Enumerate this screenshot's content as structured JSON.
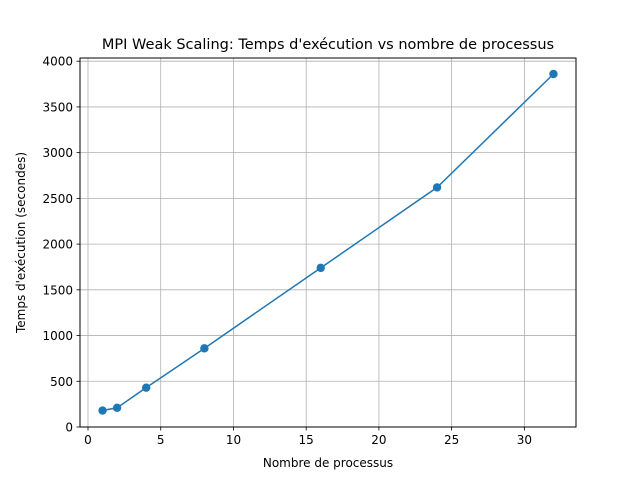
{
  "chart_data": {
    "type": "line",
    "title": "MPI Weak Scaling: Temps d'exécution vs nombre de processus",
    "xlabel": "Nombre de processus",
    "ylabel": "Temps d'exécution (secondes)",
    "xlim": [
      -0.55,
      33.55
    ],
    "ylim": [
      0,
      4035
    ],
    "grid": true,
    "xticks": [
      0,
      5,
      10,
      15,
      20,
      25,
      30
    ],
    "yticks": [
      0,
      500,
      1000,
      1500,
      2000,
      2500,
      3000,
      3500,
      4000
    ],
    "series": [
      {
        "color": "#1f77b4",
        "marker": "circle",
        "x": [
          1,
          2,
          4,
          8,
          16,
          24,
          32
        ],
        "y": [
          180,
          210,
          430,
          860,
          1740,
          2620,
          3860
        ]
      }
    ]
  }
}
